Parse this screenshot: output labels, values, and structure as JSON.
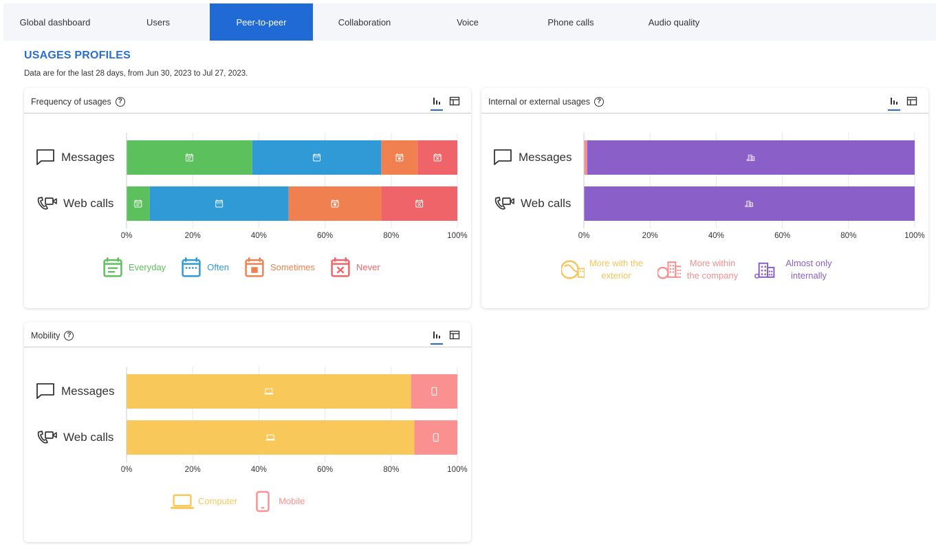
{
  "tabs": [
    "Global dashboard",
    "Users",
    "Peer-to-peer",
    "Collaboration",
    "Voice",
    "Phone calls",
    "Audio quality"
  ],
  "active_tab": 2,
  "page": {
    "title": "USAGES PROFILES",
    "subtitle": "Data are for the last 28 days, from Jun 30, 2023 to Jul 27, 2023."
  },
  "colors": {
    "everyday": "#5cc05c",
    "often": "#2f9ad6",
    "sometimes": "#f08050",
    "never": "#ee6468",
    "exterior": "#f8c45a",
    "company": "#f58f90",
    "internal": "#8a60c8",
    "computer": "#f8c85a",
    "mobile": "#fb9090",
    "accent": "#1f6ad4"
  },
  "cards": {
    "frequency": {
      "title": "Frequency of usages",
      "legend": [
        {
          "label": "Everyday",
          "color": "#5cc05c",
          "icon": "calendar-everyday-icon"
        },
        {
          "label": "Often",
          "color": "#2f9ad6",
          "icon": "calendar-often-icon"
        },
        {
          "label": "Sometimes",
          "color": "#f08050",
          "icon": "calendar-sometimes-icon"
        },
        {
          "label": "Never",
          "color": "#ee6468",
          "icon": "calendar-never-icon"
        }
      ]
    },
    "internal": {
      "title": "Internal or external usages",
      "legend": [
        {
          "label": "More with the exterior",
          "color": "#f8c45a",
          "icon": "globe-building-icon"
        },
        {
          "label": "More within the company",
          "color": "#f58f90",
          "icon": "globe-buildings-icon"
        },
        {
          "label": "Almost only internally",
          "color": "#8a60c8",
          "icon": "building-icon"
        }
      ]
    },
    "mobility": {
      "title": "Mobility",
      "legend": [
        {
          "label": "Computer",
          "color": "#f8c85a",
          "icon": "laptop-icon"
        },
        {
          "label": "Mobile",
          "color": "#fb9090",
          "icon": "mobile-icon"
        }
      ]
    }
  },
  "chart_data": [
    {
      "type": "bar",
      "orientation": "horizontal-stacked-100",
      "categories": [
        "Messages",
        "Web calls"
      ],
      "xlim": [
        0,
        100
      ],
      "xticks": [
        "0%",
        "20%",
        "40%",
        "60%",
        "80%",
        "100%"
      ],
      "series": [
        {
          "name": "Everyday",
          "values": [
            38,
            7
          ]
        },
        {
          "name": "Often",
          "values": [
            39,
            42
          ]
        },
        {
          "name": "Sometimes",
          "values": [
            11,
            28
          ]
        },
        {
          "name": "Never",
          "values": [
            12,
            23
          ]
        }
      ]
    },
    {
      "type": "bar",
      "orientation": "horizontal-stacked-100",
      "categories": [
        "Messages",
        "Web calls"
      ],
      "xlim": [
        0,
        100
      ],
      "xticks": [
        "0%",
        "20%",
        "40%",
        "60%",
        "80%",
        "100%"
      ],
      "series": [
        {
          "name": "More with the exterior",
          "values": [
            0,
            0
          ]
        },
        {
          "name": "More within the company",
          "values": [
            1,
            0
          ]
        },
        {
          "name": "Almost only internally",
          "values": [
            99,
            100
          ]
        }
      ]
    },
    {
      "type": "bar",
      "orientation": "horizontal-stacked-100",
      "categories": [
        "Messages",
        "Web calls"
      ],
      "xlim": [
        0,
        100
      ],
      "xticks": [
        "0%",
        "20%",
        "40%",
        "60%",
        "80%",
        "100%"
      ],
      "series": [
        {
          "name": "Computer",
          "values": [
            86,
            87
          ]
        },
        {
          "name": "Mobile",
          "values": [
            14,
            13
          ]
        }
      ]
    }
  ]
}
